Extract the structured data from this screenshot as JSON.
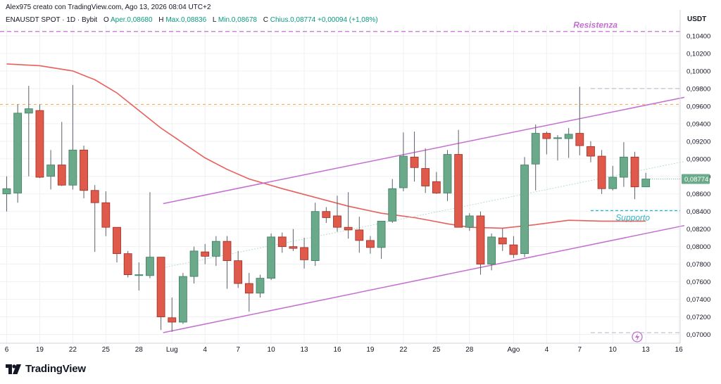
{
  "header": {
    "credit": "Alex975 creato con TradingView.com, Ago 13, 2026 08:04 UTC+2"
  },
  "symbol_bar": {
    "symbol": "ENAUSDT SPOT · 1D · Bybit",
    "open_label": "O",
    "open_text": "Aper.0,08680",
    "high_label": "H",
    "high_text": "Max.0,08836",
    "low_label": "L",
    "low_text": "Min.0,08678",
    "close_label": "C",
    "close_text": "Chius.0,08774",
    "change_text": "+0,00094 (+1,08%)"
  },
  "currency": "USDT",
  "footer": {
    "brand": "TradingView"
  },
  "icons": {
    "brand_logo": "tradingview-logo-icon",
    "flash": "lightning-icon"
  },
  "colors": {
    "up": "#6aa98a",
    "up_border": "#3f7d62",
    "down": "#e05a4b",
    "down_border": "#9c2e24",
    "ma": "#e8605c",
    "channel": "#c46fd0",
    "resistance": "#c46fd0",
    "support": "#28b7c8",
    "orange_level": "#f5a54a",
    "grid": "#eef0f3"
  },
  "chart_data": {
    "type": "candlestick",
    "ylim": [
      0.069,
      0.1052
    ],
    "y_ticks": [
      "0,07000",
      "0,07200",
      "0,07400",
      "0,07600",
      "0,07800",
      "0,08000",
      "0,08200",
      "0,08400",
      "0,08600",
      "0,08800",
      "0,09000",
      "0,09200",
      "0,09400",
      "0,09600",
      "0,09800",
      "0,10000",
      "0,10200",
      "0,10400"
    ],
    "x_ticks": [
      {
        "label": "6",
        "i": 0
      },
      {
        "label": "19",
        "i": 3
      },
      {
        "label": "22",
        "i": 6
      },
      {
        "label": "25",
        "i": 9
      },
      {
        "label": "28",
        "i": 12
      },
      {
        "label": "Lug",
        "i": 15
      },
      {
        "label": "4",
        "i": 18
      },
      {
        "label": "7",
        "i": 21
      },
      {
        "label": "10",
        "i": 24
      },
      {
        "label": "13",
        "i": 27
      },
      {
        "label": "16",
        "i": 30
      },
      {
        "label": "19",
        "i": 33
      },
      {
        "label": "22",
        "i": 36
      },
      {
        "label": "25",
        "i": 39
      },
      {
        "label": "28",
        "i": 42
      },
      {
        "label": "Ago",
        "i": 46
      },
      {
        "label": "4",
        "i": 49
      },
      {
        "label": "7",
        "i": 52
      },
      {
        "label": "10",
        "i": 55
      },
      {
        "label": "13",
        "i": 58
      },
      {
        "label": "16",
        "i": 61
      }
    ],
    "last_price_label": "0,08774",
    "candles": [
      {
        "o": 0.086,
        "h": 0.088,
        "l": 0.084,
        "c": 0.0866
      },
      {
        "o": 0.0861,
        "h": 0.0962,
        "l": 0.085,
        "c": 0.0952
      },
      {
        "o": 0.0952,
        "h": 0.0983,
        "l": 0.088,
        "c": 0.0957
      },
      {
        "o": 0.0955,
        "h": 0.0962,
        "l": 0.0878,
        "c": 0.0879
      },
      {
        "o": 0.088,
        "h": 0.091,
        "l": 0.0865,
        "c": 0.0893
      },
      {
        "o": 0.0893,
        "h": 0.0942,
        "l": 0.0869,
        "c": 0.087
      },
      {
        "o": 0.087,
        "h": 0.0984,
        "l": 0.0865,
        "c": 0.091
      },
      {
        "o": 0.091,
        "h": 0.0915,
        "l": 0.0855,
        "c": 0.0864
      },
      {
        "o": 0.0864,
        "h": 0.087,
        "l": 0.0794,
        "c": 0.085
      },
      {
        "o": 0.085,
        "h": 0.0863,
        "l": 0.0812,
        "c": 0.0822
      },
      {
        "o": 0.0822,
        "h": 0.0822,
        "l": 0.0782,
        "c": 0.0792
      },
      {
        "o": 0.0792,
        "h": 0.0795,
        "l": 0.0765,
        "c": 0.0768
      },
      {
        "o": 0.0768,
        "h": 0.0782,
        "l": 0.075,
        "c": 0.0768
      },
      {
        "o": 0.0767,
        "h": 0.0862,
        "l": 0.0764,
        "c": 0.0788
      },
      {
        "o": 0.0788,
        "h": 0.0788,
        "l": 0.0705,
        "c": 0.072
      },
      {
        "o": 0.0719,
        "h": 0.0742,
        "l": 0.0703,
        "c": 0.0714
      },
      {
        "o": 0.0714,
        "h": 0.077,
        "l": 0.0712,
        "c": 0.0766
      },
      {
        "o": 0.0766,
        "h": 0.08,
        "l": 0.0758,
        "c": 0.0795
      },
      {
        "o": 0.0794,
        "h": 0.0803,
        "l": 0.078,
        "c": 0.0789
      },
      {
        "o": 0.0789,
        "h": 0.0812,
        "l": 0.0778,
        "c": 0.0806
      },
      {
        "o": 0.0806,
        "h": 0.0812,
        "l": 0.0752,
        "c": 0.0784
      },
      {
        "o": 0.0784,
        "h": 0.0795,
        "l": 0.0753,
        "c": 0.0758
      },
      {
        "o": 0.0758,
        "h": 0.077,
        "l": 0.0726,
        "c": 0.0747
      },
      {
        "o": 0.0747,
        "h": 0.0768,
        "l": 0.0742,
        "c": 0.0764
      },
      {
        "o": 0.0764,
        "h": 0.0815,
        "l": 0.0762,
        "c": 0.0811
      },
      {
        "o": 0.0811,
        "h": 0.0816,
        "l": 0.0793,
        "c": 0.08
      },
      {
        "o": 0.08,
        "h": 0.082,
        "l": 0.0795,
        "c": 0.0798
      },
      {
        "o": 0.0799,
        "h": 0.081,
        "l": 0.0775,
        "c": 0.0785
      },
      {
        "o": 0.0784,
        "h": 0.085,
        "l": 0.0778,
        "c": 0.084
      },
      {
        "o": 0.084,
        "h": 0.0845,
        "l": 0.0827,
        "c": 0.0833
      },
      {
        "o": 0.0835,
        "h": 0.0858,
        "l": 0.0817,
        "c": 0.0822
      },
      {
        "o": 0.0822,
        "h": 0.0862,
        "l": 0.0809,
        "c": 0.0819
      },
      {
        "o": 0.0819,
        "h": 0.0834,
        "l": 0.0793,
        "c": 0.0807
      },
      {
        "o": 0.0807,
        "h": 0.0812,
        "l": 0.0792,
        "c": 0.0799
      },
      {
        "o": 0.0799,
        "h": 0.0828,
        "l": 0.0786,
        "c": 0.0829
      },
      {
        "o": 0.0829,
        "h": 0.0877,
        "l": 0.0827,
        "c": 0.0866
      },
      {
        "o": 0.0867,
        "h": 0.093,
        "l": 0.0863,
        "c": 0.0903
      },
      {
        "o": 0.0902,
        "h": 0.0931,
        "l": 0.0874,
        "c": 0.089
      },
      {
        "o": 0.0889,
        "h": 0.0912,
        "l": 0.0861,
        "c": 0.0869
      },
      {
        "o": 0.0874,
        "h": 0.0885,
        "l": 0.086,
        "c": 0.0861
      },
      {
        "o": 0.0861,
        "h": 0.091,
        "l": 0.0852,
        "c": 0.0905
      },
      {
        "o": 0.0905,
        "h": 0.0933,
        "l": 0.0822,
        "c": 0.0822
      },
      {
        "o": 0.0822,
        "h": 0.0838,
        "l": 0.0818,
        "c": 0.0835
      },
      {
        "o": 0.0835,
        "h": 0.084,
        "l": 0.0768,
        "c": 0.078
      },
      {
        "o": 0.078,
        "h": 0.0815,
        "l": 0.0773,
        "c": 0.0811
      },
      {
        "o": 0.081,
        "h": 0.0821,
        "l": 0.0795,
        "c": 0.0803
      },
      {
        "o": 0.0802,
        "h": 0.0812,
        "l": 0.0787,
        "c": 0.0791
      },
      {
        "o": 0.0792,
        "h": 0.0902,
        "l": 0.0788,
        "c": 0.0893
      },
      {
        "o": 0.0894,
        "h": 0.0939,
        "l": 0.0864,
        "c": 0.0929
      },
      {
        "o": 0.0929,
        "h": 0.0931,
        "l": 0.0905,
        "c": 0.0923
      },
      {
        "o": 0.0924,
        "h": 0.0927,
        "l": 0.0898,
        "c": 0.0924
      },
      {
        "o": 0.0923,
        "h": 0.0935,
        "l": 0.0901,
        "c": 0.0928
      },
      {
        "o": 0.0929,
        "h": 0.0982,
        "l": 0.0904,
        "c": 0.0915
      },
      {
        "o": 0.0914,
        "h": 0.092,
        "l": 0.0896,
        "c": 0.0903
      },
      {
        "o": 0.0903,
        "h": 0.091,
        "l": 0.086,
        "c": 0.0866
      },
      {
        "o": 0.0866,
        "h": 0.0892,
        "l": 0.0864,
        "c": 0.0879
      },
      {
        "o": 0.0879,
        "h": 0.0919,
        "l": 0.0868,
        "c": 0.0902
      },
      {
        "o": 0.0902,
        "h": 0.0908,
        "l": 0.0854,
        "c": 0.0868
      },
      {
        "o": 0.0868,
        "h": 0.0884,
        "l": 0.0868,
        "c": 0.0877
      }
    ],
    "moving_average": [
      {
        "i": 0,
        "v": 0.1008
      },
      {
        "i": 3,
        "v": 0.1006
      },
      {
        "i": 6,
        "v": 0.1
      },
      {
        "i": 8,
        "v": 0.099
      },
      {
        "i": 10,
        "v": 0.0975
      },
      {
        "i": 12,
        "v": 0.0955
      },
      {
        "i": 14,
        "v": 0.0935
      },
      {
        "i": 16,
        "v": 0.0918
      },
      {
        "i": 18,
        "v": 0.0901
      },
      {
        "i": 20,
        "v": 0.0888
      },
      {
        "i": 22,
        "v": 0.0877
      },
      {
        "i": 25,
        "v": 0.0866
      },
      {
        "i": 28,
        "v": 0.0856
      },
      {
        "i": 31,
        "v": 0.0846
      },
      {
        "i": 34,
        "v": 0.0838
      },
      {
        "i": 37,
        "v": 0.0833
      },
      {
        "i": 40,
        "v": 0.0826
      },
      {
        "i": 42,
        "v": 0.0822
      },
      {
        "i": 45,
        "v": 0.0821
      },
      {
        "i": 48,
        "v": 0.0825
      },
      {
        "i": 51,
        "v": 0.083
      },
      {
        "i": 54,
        "v": 0.0829
      },
      {
        "i": 57,
        "v": 0.0829
      },
      {
        "i": 58,
        "v": 0.0829
      }
    ],
    "channel_upper": {
      "from": {
        "i": 14.2,
        "v": 0.0849
      },
      "to": {
        "i": 61.5,
        "v": 0.097
      }
    },
    "channel_lower": {
      "from": {
        "i": 14.2,
        "v": 0.0702
      },
      "to": {
        "i": 61.5,
        "v": 0.0824
      }
    },
    "mid_line": {
      "from": {
        "i": 14.2,
        "v": 0.0776
      },
      "to": {
        "i": 61.5,
        "v": 0.0897
      }
    },
    "levels": [
      {
        "name": "Resistenza",
        "value": 0.1045,
        "style": "dashed",
        "color": "#c46fd0",
        "label": "Resistenza"
      },
      {
        "name": "orange",
        "value": 0.0962,
        "style": "dashed",
        "color": "#f5a54a",
        "label": ""
      },
      {
        "name": "Supporto",
        "value": 0.0841,
        "style": "dashed",
        "color": "#28b7c8",
        "label": "Supporto",
        "from_i": 53
      },
      {
        "name": "top-right",
        "value": 0.098,
        "style": "dashed",
        "color": "#b0b7c3",
        "label": "",
        "from_i": 53
      },
      {
        "name": "bottom-right",
        "value": 0.0702,
        "style": "dashed",
        "color": "#b0b7c3",
        "label": "",
        "from_i": 53
      }
    ]
  }
}
